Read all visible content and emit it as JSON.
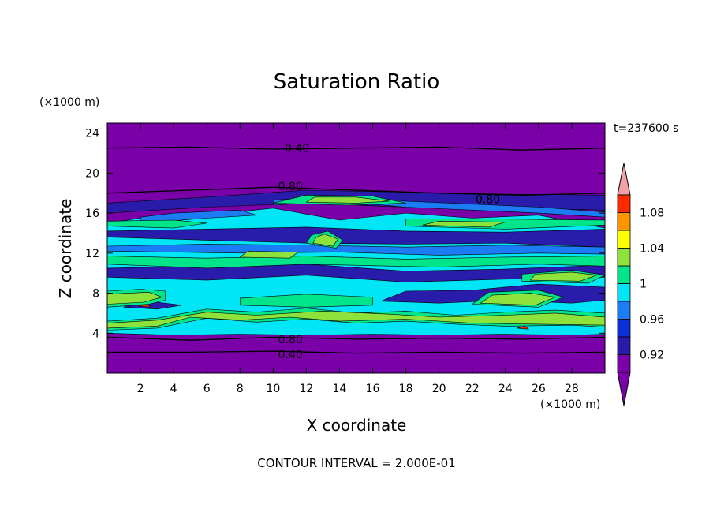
{
  "chart_data": {
    "type": "heatmap",
    "title": "Saturation Ratio",
    "xlabel": "X coordinate",
    "ylabel": "Z coordinate",
    "x_unit": "(×1000 m)",
    "y_unit": "(×1000 m)",
    "time_label": "t=237600 s",
    "footer": "CONTOUR INTERVAL = 2.000E-01",
    "xlim": [
      0,
      30
    ],
    "ylim": [
      0,
      25
    ],
    "x_ticks": [
      2,
      4,
      6,
      8,
      10,
      12,
      14,
      16,
      18,
      20,
      22,
      24,
      26,
      28
    ],
    "y_ticks": [
      4,
      8,
      12,
      16,
      20,
      24
    ],
    "colorbar": {
      "levels": [
        0.9,
        0.92,
        0.94,
        0.96,
        0.98,
        1.0,
        1.02,
        1.04,
        1.06,
        1.08,
        1.1
      ],
      "colors": [
        "#7a00a8",
        "#2a1cab",
        "#0a30d8",
        "#1c7cf6",
        "#00e6f6",
        "#00e48a",
        "#8ee23c",
        "#ffff00",
        "#ff9600",
        "#ff2a00",
        "#f4a0a8"
      ],
      "labels": [
        "0.92",
        "0.96",
        "1",
        "1.04",
        "1.08"
      ],
      "extend": "both"
    },
    "contour_labels": [
      {
        "text": "0.40",
        "x": 10.7,
        "y": 22.5
      },
      {
        "text": "0.80",
        "x": 10.3,
        "y": 18.7
      },
      {
        "text": "0.80",
        "x": 22.2,
        "y": 17.4
      },
      {
        "text": "0.80",
        "x": 10.3,
        "y": 3.4
      },
      {
        "text": "0.40",
        "x": 10.3,
        "y": 1.9
      }
    ],
    "regions": [
      {
        "level": 0.98,
        "points": [
          [
            0,
            4.0
          ],
          [
            4,
            3.8
          ],
          [
            8,
            3.9
          ],
          [
            12,
            3.8
          ],
          [
            16,
            3.9
          ],
          [
            20,
            3.8
          ],
          [
            24,
            3.9
          ],
          [
            28,
            3.8
          ],
          [
            30,
            3.9
          ],
          [
            30,
            14.5
          ],
          [
            26,
            15.8
          ],
          [
            22,
            15.5
          ],
          [
            18,
            16.0
          ],
          [
            14,
            15.3
          ],
          [
            10,
            16.5
          ],
          [
            6,
            15.8
          ],
          [
            2,
            15.5
          ],
          [
            0,
            15.0
          ]
        ]
      },
      {
        "level": 0.92,
        "points": [
          [
            0,
            13.6
          ],
          [
            6,
            13.3
          ],
          [
            12,
            13.0
          ],
          [
            18,
            12.9
          ],
          [
            24,
            13.0
          ],
          [
            30,
            12.6
          ],
          [
            30,
            14.4
          ],
          [
            24,
            14.1
          ],
          [
            18,
            14.2
          ],
          [
            12,
            14.6
          ],
          [
            6,
            14.4
          ],
          [
            0,
            14.2
          ]
        ]
      },
      {
        "level": 0.92,
        "points": [
          [
            0,
            9.6
          ],
          [
            6,
            9.3
          ],
          [
            12,
            9.8
          ],
          [
            18,
            9.1
          ],
          [
            24,
            9.4
          ],
          [
            30,
            9.6
          ],
          [
            30,
            10.8
          ],
          [
            24,
            10.4
          ],
          [
            18,
            10.2
          ],
          [
            12,
            10.9
          ],
          [
            6,
            10.7
          ],
          [
            0,
            10.5
          ]
        ]
      },
      {
        "level": 0.92,
        "points": [
          [
            16.5,
            7.2
          ],
          [
            20,
            7.0
          ],
          [
            24,
            7.3
          ],
          [
            28,
            7.0
          ],
          [
            30,
            7.3
          ],
          [
            30,
            8.6
          ],
          [
            26,
            8.9
          ],
          [
            22,
            8.3
          ],
          [
            18,
            8.2
          ]
        ]
      },
      {
        "level": 0.92,
        "points": [
          [
            1,
            6.6
          ],
          [
            3,
            6.4
          ],
          [
            4.5,
            6.8
          ],
          [
            3,
            7.1
          ],
          [
            1.5,
            7.0
          ]
        ]
      },
      {
        "level": 0.92,
        "points": [
          [
            0,
            16.0
          ],
          [
            6,
            16.6
          ],
          [
            12,
            17.0
          ],
          [
            18,
            16.6
          ],
          [
            24,
            16.5
          ],
          [
            30,
            16.3
          ],
          [
            30,
            17.8
          ],
          [
            24,
            17.9
          ],
          [
            18,
            18.1
          ],
          [
            12,
            18.3
          ],
          [
            6,
            17.6
          ],
          [
            0,
            17.0
          ]
        ]
      },
      {
        "level": 0.96,
        "points": [
          [
            2,
            15.0
          ],
          [
            6,
            15.5
          ],
          [
            9,
            15.8
          ],
          [
            8,
            16.3
          ],
          [
            4,
            16.0
          ],
          [
            2,
            15.6
          ]
        ]
      },
      {
        "level": 0.96,
        "points": [
          [
            10,
            16.8
          ],
          [
            14,
            17.2
          ],
          [
            18,
            16.6
          ],
          [
            26,
            16.0
          ],
          [
            30,
            15.6
          ],
          [
            30,
            16.1
          ],
          [
            26,
            16.6
          ],
          [
            18,
            17.2
          ],
          [
            14,
            17.7
          ],
          [
            10,
            17.3
          ]
        ]
      },
      {
        "level": 0.96,
        "points": [
          [
            0,
            12.2
          ],
          [
            8,
            12.0
          ],
          [
            14,
            12.1
          ],
          [
            20,
            11.8
          ],
          [
            26,
            12.0
          ],
          [
            30,
            11.9
          ],
          [
            30,
            12.6
          ],
          [
            24,
            12.8
          ],
          [
            18,
            12.6
          ],
          [
            12,
            12.8
          ],
          [
            6,
            12.9
          ],
          [
            0,
            12.7
          ]
        ]
      },
      {
        "level": 1.0,
        "points": [
          [
            0,
            4.3
          ],
          [
            3,
            4.5
          ],
          [
            6,
            5.5
          ],
          [
            9,
            5.1
          ],
          [
            12,
            5.4
          ],
          [
            15,
            5.0
          ],
          [
            18,
            5.2
          ],
          [
            21,
            4.9
          ],
          [
            24,
            4.7
          ],
          [
            28,
            4.8
          ],
          [
            30,
            4.6
          ],
          [
            30,
            6.0
          ],
          [
            27,
            6.3
          ],
          [
            24,
            6.1
          ],
          [
            21,
            5.8
          ],
          [
            18,
            6.2
          ],
          [
            15,
            6.0
          ],
          [
            12,
            6.5
          ],
          [
            9,
            6.1
          ],
          [
            6,
            6.4
          ],
          [
            3,
            5.5
          ],
          [
            0,
            5.2
          ]
        ]
      },
      {
        "level": 1.0,
        "points": [
          [
            0,
            6.6
          ],
          [
            2.5,
            6.9
          ],
          [
            3.5,
            7.3
          ],
          [
            3.5,
            8.2
          ],
          [
            2,
            8.4
          ],
          [
            0,
            8.2
          ]
        ]
      },
      {
        "level": 1.0,
        "points": [
          [
            8,
            6.8
          ],
          [
            12,
            6.6
          ],
          [
            16,
            6.8
          ],
          [
            16,
            7.6
          ],
          [
            12,
            7.9
          ],
          [
            8,
            7.5
          ]
        ]
      },
      {
        "level": 1.0,
        "points": [
          [
            22,
            6.9
          ],
          [
            26,
            6.6
          ],
          [
            27.5,
            7.6
          ],
          [
            26,
            8.3
          ],
          [
            23,
            8.1
          ]
        ]
      },
      {
        "level": 1.0,
        "points": [
          [
            25,
            9.2
          ],
          [
            29,
            9.0
          ],
          [
            30,
            9.8
          ],
          [
            28,
            10.3
          ],
          [
            25,
            9.9
          ]
        ]
      },
      {
        "level": 1.0,
        "points": [
          [
            0,
            10.9
          ],
          [
            6,
            10.5
          ],
          [
            12,
            10.9
          ],
          [
            20,
            10.6
          ],
          [
            26,
            10.9
          ],
          [
            30,
            10.7
          ],
          [
            30,
            11.7
          ],
          [
            24,
            11.6
          ],
          [
            18,
            11.4
          ],
          [
            12,
            11.7
          ],
          [
            6,
            11.5
          ],
          [
            0,
            11.7
          ]
        ]
      },
      {
        "level": 1.0,
        "points": [
          [
            12,
            13.0
          ],
          [
            13.8,
            12.5
          ],
          [
            14.2,
            13.3
          ],
          [
            13.3,
            14.2
          ],
          [
            12.3,
            13.8
          ]
        ]
      },
      {
        "level": 1.0,
        "points": [
          [
            18,
            14.7
          ],
          [
            24,
            14.4
          ],
          [
            30,
            14.8
          ],
          [
            30,
            15.3
          ],
          [
            24,
            15.4
          ],
          [
            18,
            15.4
          ]
        ]
      },
      {
        "level": 1.0,
        "points": [
          [
            0,
            14.7
          ],
          [
            4,
            14.5
          ],
          [
            6,
            15.0
          ],
          [
            4,
            15.3
          ],
          [
            0,
            15.2
          ]
        ]
      },
      {
        "level": 1.0,
        "points": [
          [
            10,
            17.0
          ],
          [
            14.5,
            16.8
          ],
          [
            18,
            17.0
          ],
          [
            16,
            17.7
          ],
          [
            12,
            17.8
          ]
        ]
      },
      {
        "level": 1.02,
        "points": [
          [
            0,
            4.5
          ],
          [
            3,
            4.7
          ],
          [
            5,
            5.6
          ],
          [
            8,
            5.3
          ],
          [
            11,
            5.6
          ],
          [
            14,
            5.2
          ],
          [
            18,
            5.4
          ],
          [
            22,
            5.0
          ],
          [
            26,
            4.9
          ],
          [
            30,
            4.8
          ],
          [
            30,
            5.6
          ],
          [
            27,
            6.0
          ],
          [
            24,
            5.8
          ],
          [
            20,
            5.6
          ],
          [
            17,
            5.9
          ],
          [
            13,
            6.2
          ],
          [
            9,
            5.8
          ],
          [
            6,
            6.1
          ],
          [
            3,
            5.3
          ],
          [
            0,
            5.0
          ]
        ]
      },
      {
        "level": 1.02,
        "points": [
          [
            0,
            6.9
          ],
          [
            2.2,
            7.1
          ],
          [
            3.3,
            7.6
          ],
          [
            2.5,
            8.1
          ],
          [
            0,
            7.9
          ]
        ]
      },
      {
        "level": 1.02,
        "points": [
          [
            22.5,
            7.0
          ],
          [
            25.8,
            6.8
          ],
          [
            27.0,
            7.6
          ],
          [
            25.5,
            8.0
          ],
          [
            23.2,
            7.8
          ]
        ]
      },
      {
        "level": 1.02,
        "points": [
          [
            25.5,
            9.3
          ],
          [
            28.5,
            9.2
          ],
          [
            29.5,
            9.8
          ],
          [
            28.0,
            10.1
          ],
          [
            25.8,
            9.9
          ]
        ]
      },
      {
        "level": 1.02,
        "points": [
          [
            8,
            11.6
          ],
          [
            11,
            11.5
          ],
          [
            11.5,
            12.1
          ],
          [
            8.5,
            12.2
          ]
        ]
      },
      {
        "level": 1.02,
        "points": [
          [
            12.4,
            13.0
          ],
          [
            13.6,
            12.7
          ],
          [
            13.9,
            13.4
          ],
          [
            13.1,
            13.9
          ],
          [
            12.6,
            13.6
          ]
        ]
      },
      {
        "level": 1.02,
        "points": [
          [
            19,
            14.8
          ],
          [
            23,
            14.6
          ],
          [
            24,
            15.1
          ],
          [
            20,
            15.2
          ]
        ]
      },
      {
        "level": 1.02,
        "points": [
          [
            12,
            17.1
          ],
          [
            15,
            17.0
          ],
          [
            17,
            17.2
          ],
          [
            15,
            17.6
          ],
          [
            12.5,
            17.6
          ]
        ]
      },
      {
        "level": 1.08,
        "points": [
          [
            1.9,
            6.7
          ],
          [
            2.6,
            6.6
          ],
          [
            2.4,
            6.9
          ]
        ]
      },
      {
        "level": 1.08,
        "points": [
          [
            24.7,
            4.5
          ],
          [
            25.4,
            4.4
          ],
          [
            25.2,
            4.7
          ]
        ]
      }
    ],
    "contour_lines": [
      {
        "level": 0.8,
        "points": [
          [
            0,
            3.6
          ],
          [
            5,
            3.3
          ],
          [
            10,
            3.6
          ],
          [
            15,
            3.4
          ],
          [
            20,
            3.5
          ],
          [
            25,
            3.4
          ],
          [
            30,
            3.6
          ]
        ]
      },
      {
        "level": 0.4,
        "points": [
          [
            0,
            2.1
          ],
          [
            5,
            2.1
          ],
          [
            10,
            2.2
          ],
          [
            15,
            2.0
          ],
          [
            20,
            2.1
          ],
          [
            25,
            2.0
          ],
          [
            30,
            2.1
          ]
        ]
      },
      {
        "level": 0.8,
        "points": [
          [
            0,
            18.0
          ],
          [
            5,
            18.3
          ],
          [
            10,
            18.6
          ],
          [
            15,
            18.3
          ],
          [
            20,
            18.0
          ],
          [
            25,
            17.8
          ],
          [
            30,
            18.0
          ]
        ]
      },
      {
        "level": 0.4,
        "points": [
          [
            0,
            22.5
          ],
          [
            5,
            22.6
          ],
          [
            10,
            22.4
          ],
          [
            15,
            22.5
          ],
          [
            20,
            22.6
          ],
          [
            25,
            22.3
          ],
          [
            30,
            22.5
          ]
        ]
      }
    ]
  }
}
